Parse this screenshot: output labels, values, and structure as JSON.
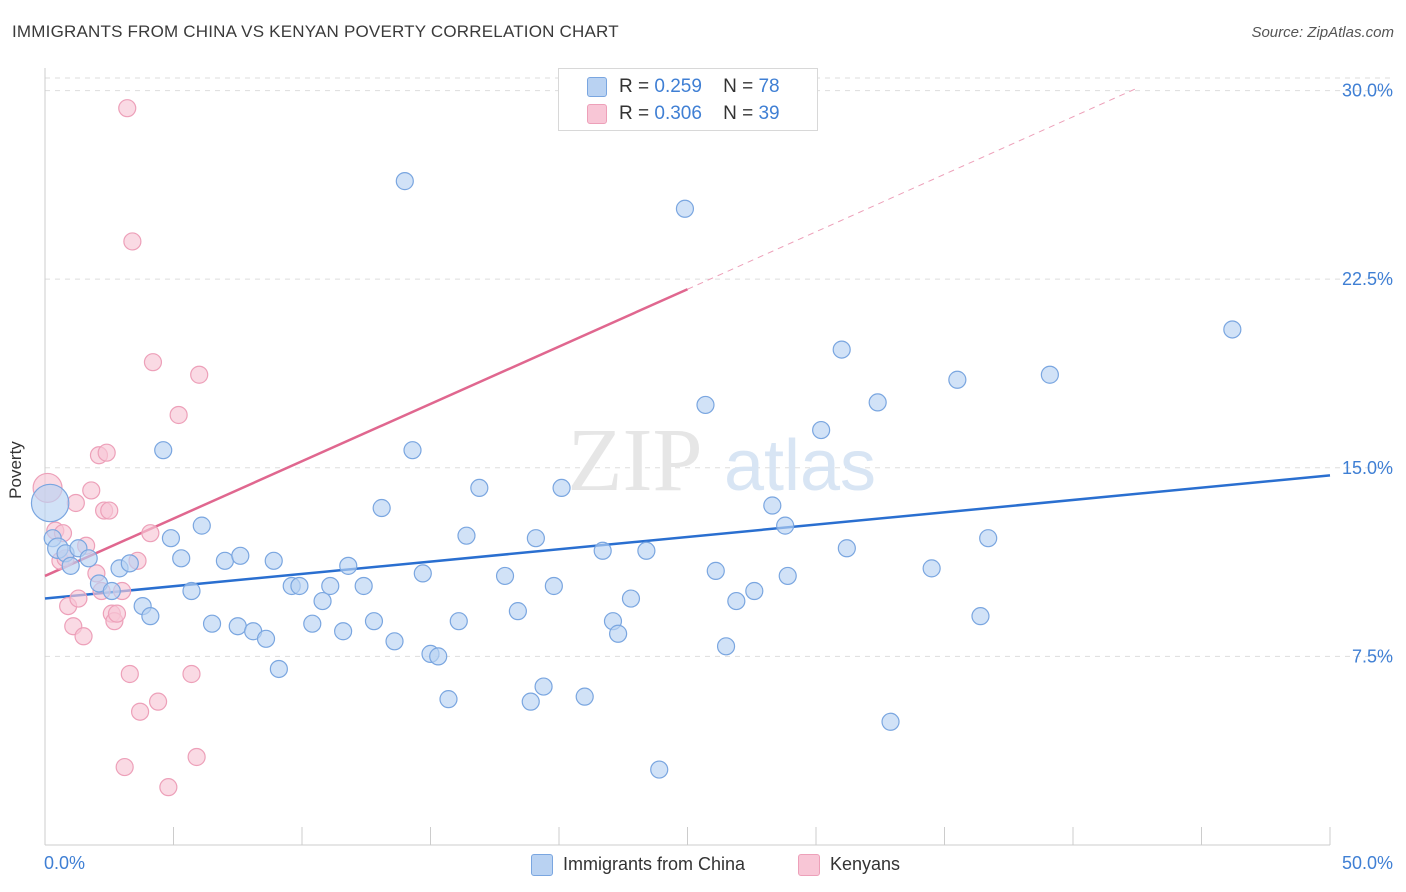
{
  "title": "IMMIGRANTS FROM CHINA VS KENYAN POVERTY CORRELATION CHART",
  "source": "Source: ZipAtlas.com",
  "watermark": {
    "zip": "ZIP",
    "atlas": "atlas"
  },
  "colors": {
    "blue_fill": "#b9d2f2",
    "blue_stroke": "#7aa6e0",
    "blue_line": "#2a6fd0",
    "pink_fill": "#f8c6d6",
    "pink_stroke": "#eda0b9",
    "pink_line": "#e0678f",
    "tick_label": "#3f7fd4",
    "grid": "#dddddd"
  },
  "stats_legend": [
    {
      "r_label": "R =",
      "r_value": "0.259",
      "n_label": "N =",
      "n_value": "78",
      "color": "#b9d2f2",
      "stroke": "#7aa6e0"
    },
    {
      "r_label": "R =",
      "r_value": "0.306",
      "n_label": "N =",
      "n_value": "39",
      "color": "#f8c6d6",
      "stroke": "#eda0b9"
    }
  ],
  "bottom_legend": [
    {
      "label": "Immigrants from China",
      "color": "#b9d2f2",
      "stroke": "#7aa6e0"
    },
    {
      "label": "Kenyans",
      "color": "#f8c6d6",
      "stroke": "#eda0b9"
    }
  ],
  "chart_data": {
    "type": "scatter",
    "title": "IMMIGRANTS FROM CHINA VS KENYAN POVERTY CORRELATION CHART",
    "xlabel": "",
    "ylabel": "Poverty",
    "xlim": [
      0,
      50
    ],
    "ylim": [
      0,
      30.5
    ],
    "x_tick_labels": [
      "0.0%",
      "50.0%"
    ],
    "y_ticks": [
      7.5,
      15.0,
      22.5,
      30.0
    ],
    "y_tick_labels": [
      "7.5%",
      "15.0%",
      "22.5%",
      "30.0%"
    ],
    "grid": "horizontal dashed",
    "legend": "top-center",
    "series": [
      {
        "name": "Immigrants from China",
        "trend": {
          "x": [
            0,
            50
          ],
          "y": [
            9.8,
            14.7
          ]
        },
        "points": [
          [
            0.2,
            13.6,
            2.2
          ],
          [
            0.3,
            12.2,
            1
          ],
          [
            0.5,
            11.8,
            1.2
          ],
          [
            0.8,
            11.6,
            1
          ],
          [
            1,
            11.1,
            1
          ],
          [
            1.3,
            11.8,
            1
          ],
          [
            1.7,
            11.4,
            1
          ],
          [
            2.1,
            10.4,
            1
          ],
          [
            2.6,
            10.1,
            1
          ],
          [
            2.9,
            11.0,
            1
          ],
          [
            3.3,
            11.2,
            1
          ],
          [
            3.8,
            9.5,
            1
          ],
          [
            4.1,
            9.1,
            1
          ],
          [
            4.6,
            15.7,
            1
          ],
          [
            4.9,
            12.2,
            1
          ],
          [
            5.3,
            11.4,
            1
          ],
          [
            5.7,
            10.1,
            1
          ],
          [
            6.1,
            12.7,
            1
          ],
          [
            6.5,
            8.8,
            1
          ],
          [
            7,
            11.3,
            1
          ],
          [
            7.5,
            8.7,
            1
          ],
          [
            7.6,
            11.5,
            1
          ],
          [
            8.1,
            8.5,
            1
          ],
          [
            8.6,
            8.2,
            1
          ],
          [
            8.9,
            11.3,
            1
          ],
          [
            9.1,
            7.0,
            1
          ],
          [
            9.6,
            10.3,
            1
          ],
          [
            9.9,
            10.3,
            1
          ],
          [
            10.4,
            8.8,
            1
          ],
          [
            10.8,
            9.7,
            1
          ],
          [
            11.1,
            10.3,
            1
          ],
          [
            11.6,
            8.5,
            1
          ],
          [
            11.8,
            11.1,
            1
          ],
          [
            12.4,
            10.3,
            1
          ],
          [
            12.8,
            8.9,
            1
          ],
          [
            13.1,
            13.4,
            1
          ],
          [
            13.6,
            8.1,
            1
          ],
          [
            14.0,
            26.4,
            1
          ],
          [
            14.3,
            15.7,
            1
          ],
          [
            14.7,
            10.8,
            1
          ],
          [
            15.0,
            7.6,
            1
          ],
          [
            15.3,
            7.5,
            1
          ],
          [
            15.7,
            5.8,
            1
          ],
          [
            16.1,
            8.9,
            1
          ],
          [
            16.4,
            12.3,
            1
          ],
          [
            16.9,
            14.2,
            1
          ],
          [
            17.9,
            10.7,
            1
          ],
          [
            18.4,
            9.3,
            1
          ],
          [
            18.9,
            5.7,
            1
          ],
          [
            19.1,
            12.2,
            1
          ],
          [
            19.4,
            6.3,
            1
          ],
          [
            19.8,
            10.3,
            1
          ],
          [
            20.1,
            14.2,
            1
          ],
          [
            21.0,
            5.9,
            1
          ],
          [
            21.7,
            11.7,
            1
          ],
          [
            22.1,
            8.9,
            1
          ],
          [
            22.3,
            8.4,
            1
          ],
          [
            22.8,
            9.8,
            1
          ],
          [
            23.4,
            11.7,
            1
          ],
          [
            23.9,
            3.0,
            1
          ],
          [
            24.9,
            25.3,
            1
          ],
          [
            25.7,
            17.5,
            1
          ],
          [
            26.1,
            10.9,
            1
          ],
          [
            26.5,
            7.9,
            1
          ],
          [
            26.9,
            9.7,
            1
          ],
          [
            27.6,
            10.1,
            1
          ],
          [
            28.3,
            13.5,
            1
          ],
          [
            28.8,
            12.7,
            1
          ],
          [
            28.9,
            10.7,
            1
          ],
          [
            30.2,
            16.5,
            1
          ],
          [
            31.0,
            19.7,
            1
          ],
          [
            31.2,
            11.8,
            1
          ],
          [
            32.4,
            17.6,
            1
          ],
          [
            32.9,
            4.9,
            1
          ],
          [
            34.5,
            11.0,
            1
          ],
          [
            35.5,
            18.5,
            1
          ],
          [
            36.4,
            9.1,
            1
          ],
          [
            36.7,
            12.2,
            1
          ],
          [
            39.1,
            18.7,
            1
          ],
          [
            46.2,
            20.5,
            1
          ]
        ]
      },
      {
        "name": "Kenyans",
        "trend": {
          "x": [
            0,
            25
          ],
          "y": [
            10.7,
            22.1
          ]
        },
        "trend_dashed": {
          "x": [
            25,
            42.5
          ],
          "y": [
            22.1,
            30.1
          ]
        },
        "points": [
          [
            0.1,
            14.2,
            1.7
          ],
          [
            0.4,
            12.5,
            1
          ],
          [
            0.6,
            11.3,
            1
          ],
          [
            0.7,
            12.4,
            1
          ],
          [
            0.8,
            11.4,
            1
          ],
          [
            0.9,
            9.5,
            1
          ],
          [
            1.1,
            8.7,
            1
          ],
          [
            1.2,
            13.6,
            1
          ],
          [
            1.3,
            9.8,
            1
          ],
          [
            1.5,
            8.3,
            1
          ],
          [
            1.6,
            11.9,
            1
          ],
          [
            1.8,
            14.1,
            1
          ],
          [
            2.0,
            10.8,
            1
          ],
          [
            2.1,
            15.5,
            1
          ],
          [
            2.2,
            10.1,
            1
          ],
          [
            2.3,
            13.3,
            1
          ],
          [
            2.4,
            15.6,
            1
          ],
          [
            2.5,
            13.3,
            1
          ],
          [
            2.6,
            9.2,
            1
          ],
          [
            2.7,
            8.9,
            1
          ],
          [
            2.8,
            9.2,
            1
          ],
          [
            3.0,
            10.1,
            1
          ],
          [
            3.1,
            3.1,
            1
          ],
          [
            3.2,
            29.3,
            1
          ],
          [
            3.3,
            6.8,
            1
          ],
          [
            3.4,
            24.0,
            1
          ],
          [
            3.6,
            11.3,
            1
          ],
          [
            3.7,
            5.3,
            1
          ],
          [
            4.1,
            12.4,
            1
          ],
          [
            4.2,
            19.2,
            1
          ],
          [
            4.4,
            5.7,
            1
          ],
          [
            4.8,
            2.3,
            1
          ],
          [
            5.2,
            17.1,
            1
          ],
          [
            5.7,
            6.8,
            1
          ],
          [
            5.9,
            3.5,
            1
          ],
          [
            6.0,
            18.7,
            1
          ]
        ]
      }
    ]
  }
}
